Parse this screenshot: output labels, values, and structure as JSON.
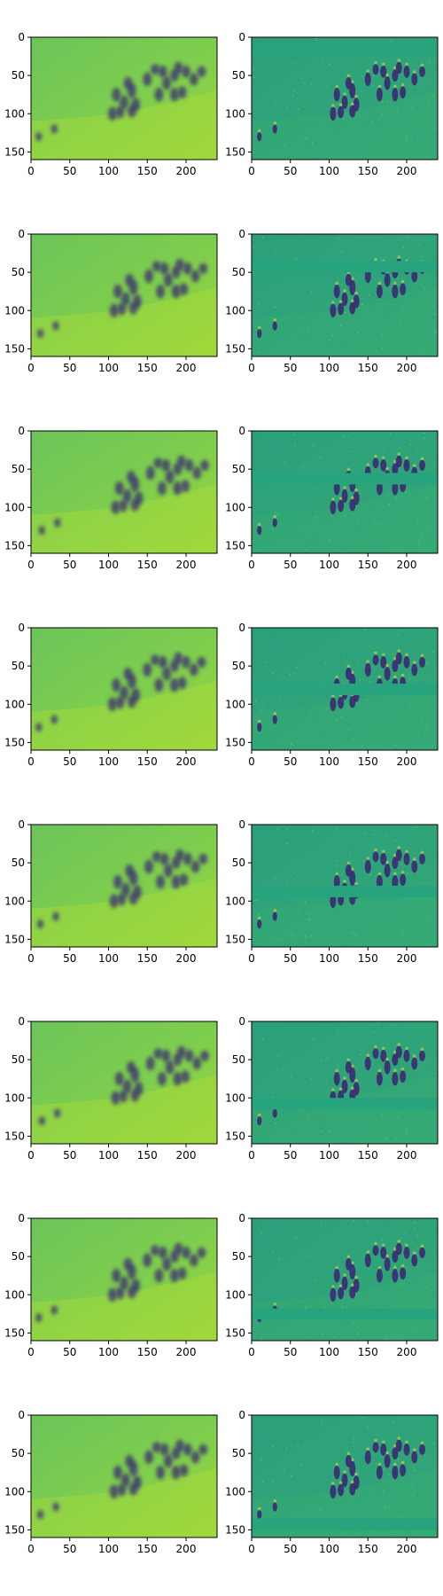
{
  "figure": {
    "rows": 8,
    "cols": 2,
    "image_width": 240,
    "image_height": 160,
    "x_ticks": [
      "0",
      "50",
      "100",
      "150",
      "200"
    ],
    "y_ticks": [
      "0",
      "50",
      "100",
      "150"
    ],
    "colormap": "viridis",
    "colors": {
      "background_left": "#7dcc4f",
      "background_right": "#2a9e7c",
      "figure_dark": "#3b2a73",
      "axis": "#000000"
    },
    "panels_left_description": "reconstructed frames, smoothed",
    "panels_right_description": "residual frames, with horizontal masked band moving down each row",
    "right_band_ranges": [
      [
        10,
        25
      ],
      [
        35,
        50
      ],
      [
        55,
        70
      ],
      [
        73,
        88
      ],
      [
        80,
        95
      ],
      [
        100,
        115
      ],
      [
        118,
        132
      ],
      [
        135,
        150
      ]
    ]
  }
}
